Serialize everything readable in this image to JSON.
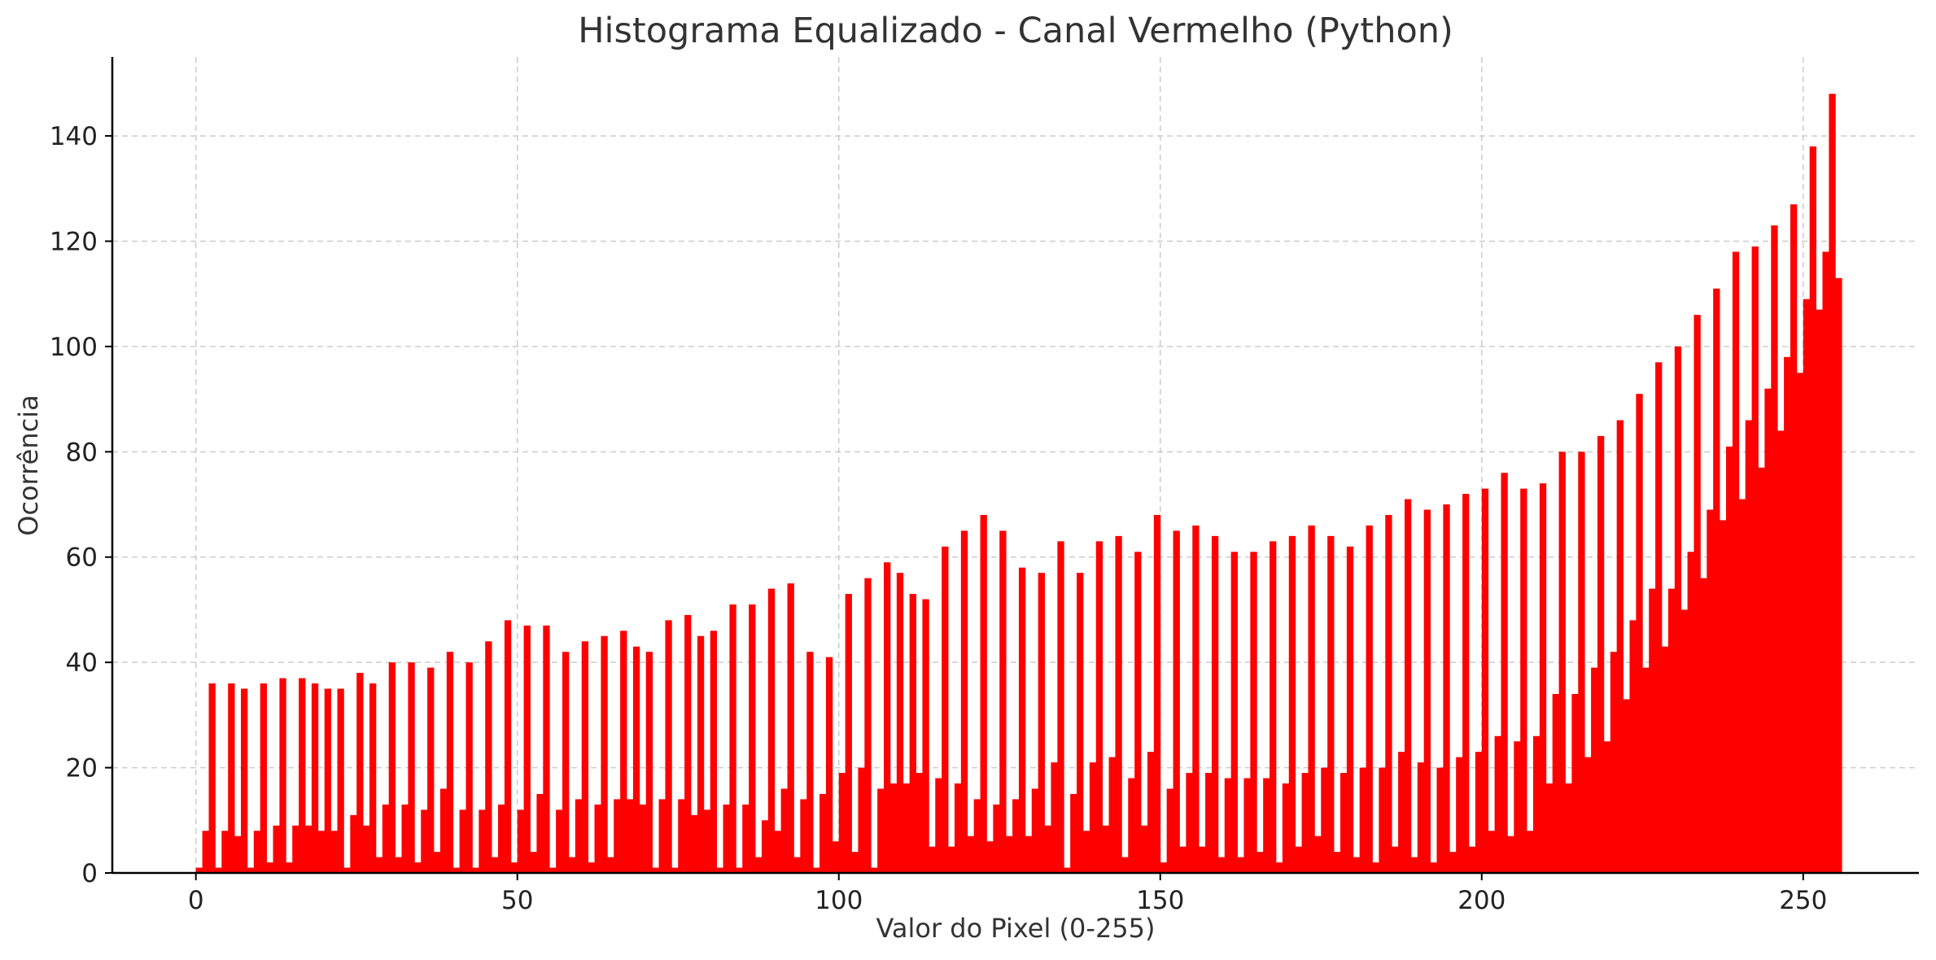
{
  "chart_data": {
    "type": "bar",
    "title": "Histograma Equalizado - Canal Vermelho (Python)",
    "xlabel": "Valor do Pixel (0-255)",
    "ylabel": "Ocorrência",
    "xlim": [
      -13,
      268
    ],
    "ylim": [
      0,
      155
    ],
    "xticks": [
      0,
      50,
      100,
      150,
      200,
      250
    ],
    "yticks": [
      0,
      20,
      40,
      60,
      80,
      100,
      120,
      140
    ],
    "grid": true,
    "bar_color": "#ff0000",
    "x": [
      0,
      1,
      2,
      3,
      4,
      5,
      6,
      7,
      8,
      9,
      10,
      11,
      12,
      13,
      14,
      15,
      16,
      17,
      18,
      19,
      20,
      21,
      22,
      23,
      24,
      25,
      26,
      27,
      28,
      29,
      30,
      31,
      32,
      33,
      34,
      35,
      36,
      37,
      38,
      39,
      40,
      41,
      42,
      43,
      44,
      45,
      46,
      47,
      48,
      49,
      50,
      51,
      52,
      53,
      54,
      55,
      56,
      57,
      58,
      59,
      60,
      61,
      62,
      63,
      64,
      65,
      66,
      67,
      68,
      69,
      70,
      71,
      72,
      73,
      74,
      75,
      76,
      77,
      78,
      79,
      80,
      81,
      82,
      83,
      84,
      85,
      86,
      87,
      88,
      89,
      90,
      91,
      92,
      93,
      94,
      95,
      96,
      97,
      98,
      99,
      100,
      101,
      102,
      103,
      104,
      105,
      106,
      107,
      108,
      109,
      110,
      111,
      112,
      113,
      114,
      115,
      116,
      117,
      118,
      119,
      120,
      121,
      122,
      123,
      124,
      125,
      126,
      127,
      128,
      129,
      130,
      131,
      132,
      133,
      134,
      135,
      136,
      137,
      138,
      139,
      140,
      141,
      142,
      143,
      144,
      145,
      146,
      147,
      148,
      149,
      150,
      151,
      152,
      153,
      154,
      155,
      156,
      157,
      158,
      159,
      160,
      161,
      162,
      163,
      164,
      165,
      166,
      167,
      168,
      169,
      170,
      171,
      172,
      173,
      174,
      175,
      176,
      177,
      178,
      179,
      180,
      181,
      182,
      183,
      184,
      185,
      186,
      187,
      188,
      189,
      190,
      191,
      192,
      193,
      194,
      195,
      196,
      197,
      198,
      199,
      200,
      201,
      202,
      203,
      204,
      205,
      206,
      207,
      208,
      209,
      210,
      211,
      212,
      213,
      214,
      215,
      216,
      217,
      218,
      219,
      220,
      221,
      222,
      223,
      224,
      225,
      226,
      227,
      228,
      229,
      230,
      231,
      232,
      233,
      234,
      235,
      236,
      237,
      238,
      239,
      240,
      241,
      242,
      243,
      244,
      245,
      246,
      247,
      248,
      249,
      250,
      251,
      252,
      253,
      254,
      255
    ],
    "values": [
      1,
      8,
      36,
      1,
      8,
      36,
      7,
      35,
      1,
      8,
      36,
      2,
      9,
      37,
      2,
      9,
      37,
      9,
      36,
      8,
      35,
      8,
      35,
      1,
      11,
      38,
      9,
      36,
      3,
      13,
      40,
      3,
      13,
      40,
      2,
      12,
      39,
      4,
      16,
      42,
      1,
      12,
      40,
      1,
      12,
      44,
      3,
      13,
      48,
      2,
      12,
      47,
      4,
      15,
      47,
      1,
      12,
      42,
      3,
      14,
      44,
      2,
      13,
      45,
      3,
      14,
      46,
      14,
      43,
      13,
      42,
      1,
      14,
      48,
      1,
      14,
      49,
      11,
      45,
      12,
      46,
      1,
      13,
      51,
      1,
      13,
      51,
      3,
      10,
      54,
      8,
      16,
      55,
      3,
      14,
      42,
      1,
      15,
      41,
      6,
      19,
      53,
      4,
      20,
      56,
      1,
      16,
      59,
      17,
      57,
      17,
      53,
      19,
      52,
      5,
      18,
      62,
      5,
      17,
      65,
      7,
      14,
      68,
      6,
      13,
      65,
      7,
      14,
      58,
      7,
      16,
      57,
      9,
      21,
      63,
      1,
      15,
      57,
      8,
      21,
      63,
      9,
      22,
      64,
      3,
      18,
      61,
      9,
      23,
      68,
      2,
      16,
      65,
      5,
      19,
      66,
      5,
      19,
      64,
      3,
      18,
      61,
      3,
      18,
      61,
      4,
      18,
      63,
      2,
      17,
      64,
      5,
      19,
      66,
      7,
      20,
      64,
      4,
      19,
      62,
      3,
      20,
      66,
      2,
      20,
      68,
      5,
      23,
      71,
      3,
      21,
      69,
      2,
      20,
      70,
      4,
      22,
      72,
      5,
      23,
      73,
      8,
      26,
      76,
      7,
      25,
      73,
      8,
      26,
      74,
      17,
      34,
      80,
      17,
      34,
      80,
      22,
      39,
      83,
      25,
      42,
      86,
      33,
      48,
      91,
      39,
      54,
      97,
      43,
      54,
      100,
      50,
      61,
      106,
      56,
      69,
      111,
      67,
      81,
      118,
      71,
      86,
      119,
      77,
      92,
      123,
      84,
      98,
      127,
      95,
      109,
      138,
      107,
      118,
      148,
      113
    ]
  }
}
